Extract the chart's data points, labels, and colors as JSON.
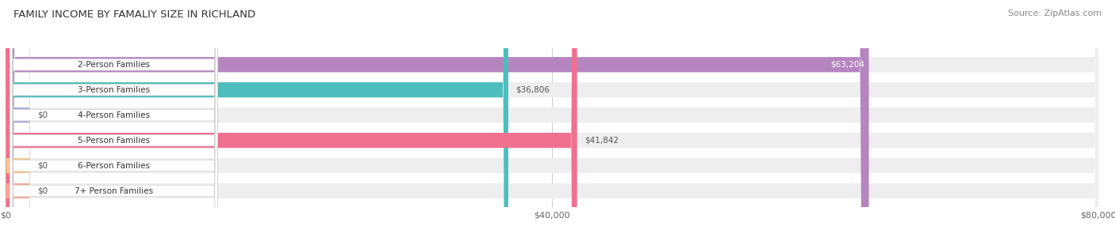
{
  "title": "FAMILY INCOME BY FAMALIY SIZE IN RICHLAND",
  "source": "Source: ZipAtlas.com",
  "categories": [
    "2-Person Families",
    "3-Person Families",
    "4-Person Families",
    "5-Person Families",
    "6-Person Families",
    "7+ Person Families"
  ],
  "values": [
    63204,
    36806,
    0,
    41842,
    0,
    0
  ],
  "bar_colors": [
    "#b585c0",
    "#4dbdbd",
    "#aaaadd",
    "#f07090",
    "#f5c990",
    "#f5a898"
  ],
  "bar_bg_color": "#eeeeee",
  "value_labels": [
    "$63,204",
    "$36,806",
    "$0",
    "$41,842",
    "$0",
    "$0"
  ],
  "xlim": [
    0,
    80000
  ],
  "xticks": [
    0,
    40000,
    80000
  ],
  "xtick_labels": [
    "$0",
    "$40,000",
    "$80,000"
  ],
  "figsize": [
    14.06,
    3.05
  ],
  "dpi": 100,
  "bg_color": "#ffffff",
  "bar_height": 0.6,
  "title_fontsize": 9.5,
  "source_fontsize": 8,
  "label_fontsize": 7.5,
  "value_fontsize": 7.5,
  "tick_fontsize": 8
}
